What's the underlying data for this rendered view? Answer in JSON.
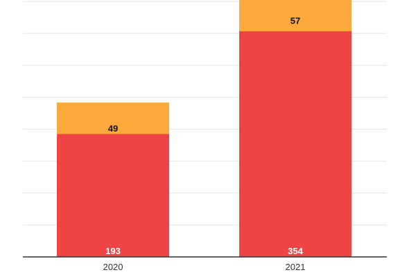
{
  "chart_data": {
    "type": "bar",
    "stacked": true,
    "categories": [
      "2020",
      "2021"
    ],
    "series": [
      {
        "values": [
          193,
          354
        ],
        "color": "#ef4444",
        "label_color": "#ffffff"
      },
      {
        "values": [
          49,
          57
        ],
        "color": "#fba93a",
        "label_color": "#111111"
      }
    ],
    "ylim": [
      0,
      440
    ],
    "grid": true,
    "legend": "none"
  }
}
